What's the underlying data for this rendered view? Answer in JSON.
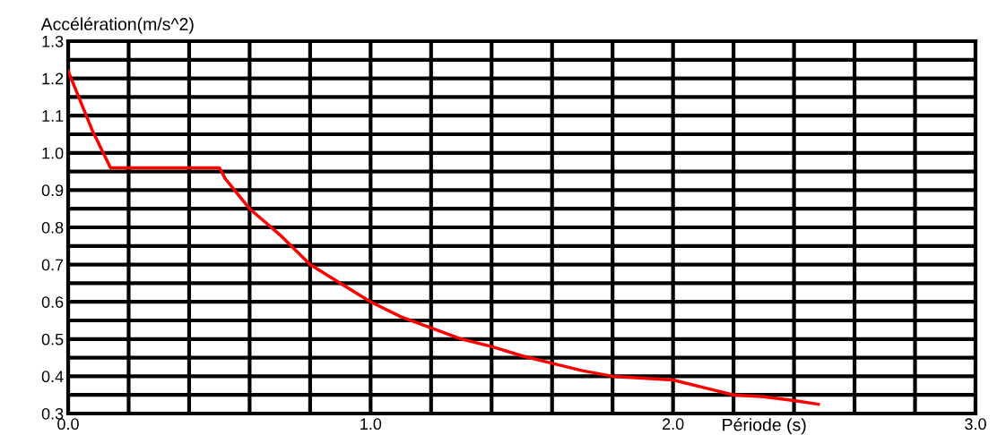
{
  "chart_data": {
    "type": "line",
    "xlabel": "Période (s)",
    "ylabel": "Accélération(m/s^2)",
    "x": [
      0,
      0.02,
      0.05,
      0.08,
      0.14,
      0.5,
      0.52,
      0.56,
      0.6,
      0.7,
      0.8,
      0.9,
      1.0,
      1.1,
      1.2,
      1.3,
      1.4,
      1.5,
      1.6,
      1.7,
      1.8,
      1.9,
      2.0,
      2.1,
      2.2,
      2.3,
      2.4,
      2.48
    ],
    "series": [
      {
        "color": "#ff0000",
        "values": [
          1.22,
          1.18,
          1.12,
          1.06,
          0.96,
          0.96,
          0.93,
          0.89,
          0.85,
          0.78,
          0.7,
          0.65,
          0.6,
          0.56,
          0.53,
          0.5,
          0.48,
          0.455,
          0.435,
          0.415,
          0.4,
          0.395,
          0.39,
          0.37,
          0.35,
          0.345,
          0.335,
          0.325
        ]
      }
    ],
    "xlim": [
      0,
      3.0
    ],
    "xticks": [
      {
        "value": 0,
        "label": "0.0"
      },
      {
        "value": 0.2,
        "label": null
      },
      {
        "value": 0.4,
        "label": null
      },
      {
        "value": 0.6,
        "label": null
      },
      {
        "value": 0.8,
        "label": null
      },
      {
        "value": 1.0,
        "label": "1.0"
      },
      {
        "value": 1.2,
        "label": null
      },
      {
        "value": 1.4,
        "label": null
      },
      {
        "value": 1.6,
        "label": null
      },
      {
        "value": 1.8,
        "label": null
      },
      {
        "value": 2.0,
        "label": "2.0"
      },
      {
        "value": 2.2,
        "label": null
      },
      {
        "value": 2.4,
        "label": null
      },
      {
        "value": 2.6,
        "label": null
      },
      {
        "value": 2.8,
        "label": null
      },
      {
        "value": 3.0,
        "label": "3.0"
      }
    ],
    "ylim": [
      0.3,
      1.3
    ],
    "yticks": [
      {
        "value": 0.3,
        "label": "0.3"
      },
      {
        "value": 0.35,
        "label": null
      },
      {
        "value": 0.4,
        "label": "0.4"
      },
      {
        "value": 0.45,
        "label": null
      },
      {
        "value": 0.5,
        "label": "0.5"
      },
      {
        "value": 0.55,
        "label": null
      },
      {
        "value": 0.6,
        "label": "0.6"
      },
      {
        "value": 0.65,
        "label": null
      },
      {
        "value": 0.7,
        "label": "0.7"
      },
      {
        "value": 0.75,
        "label": null
      },
      {
        "value": 0.8,
        "label": "0.8"
      },
      {
        "value": 0.85,
        "label": null
      },
      {
        "value": 0.9,
        "label": "0.9"
      },
      {
        "value": 0.95,
        "label": null
      },
      {
        "value": 1.0,
        "label": "1.0"
      },
      {
        "value": 1.05,
        "label": null
      },
      {
        "value": 1.1,
        "label": "1.1"
      },
      {
        "value": 1.15,
        "label": null
      },
      {
        "value": 1.2,
        "label": "1.2"
      },
      {
        "value": 1.25,
        "label": null
      },
      {
        "value": 1.3,
        "label": "1.3"
      }
    ],
    "grid": true,
    "legend": false,
    "marker": "none",
    "line_style": "solid"
  }
}
